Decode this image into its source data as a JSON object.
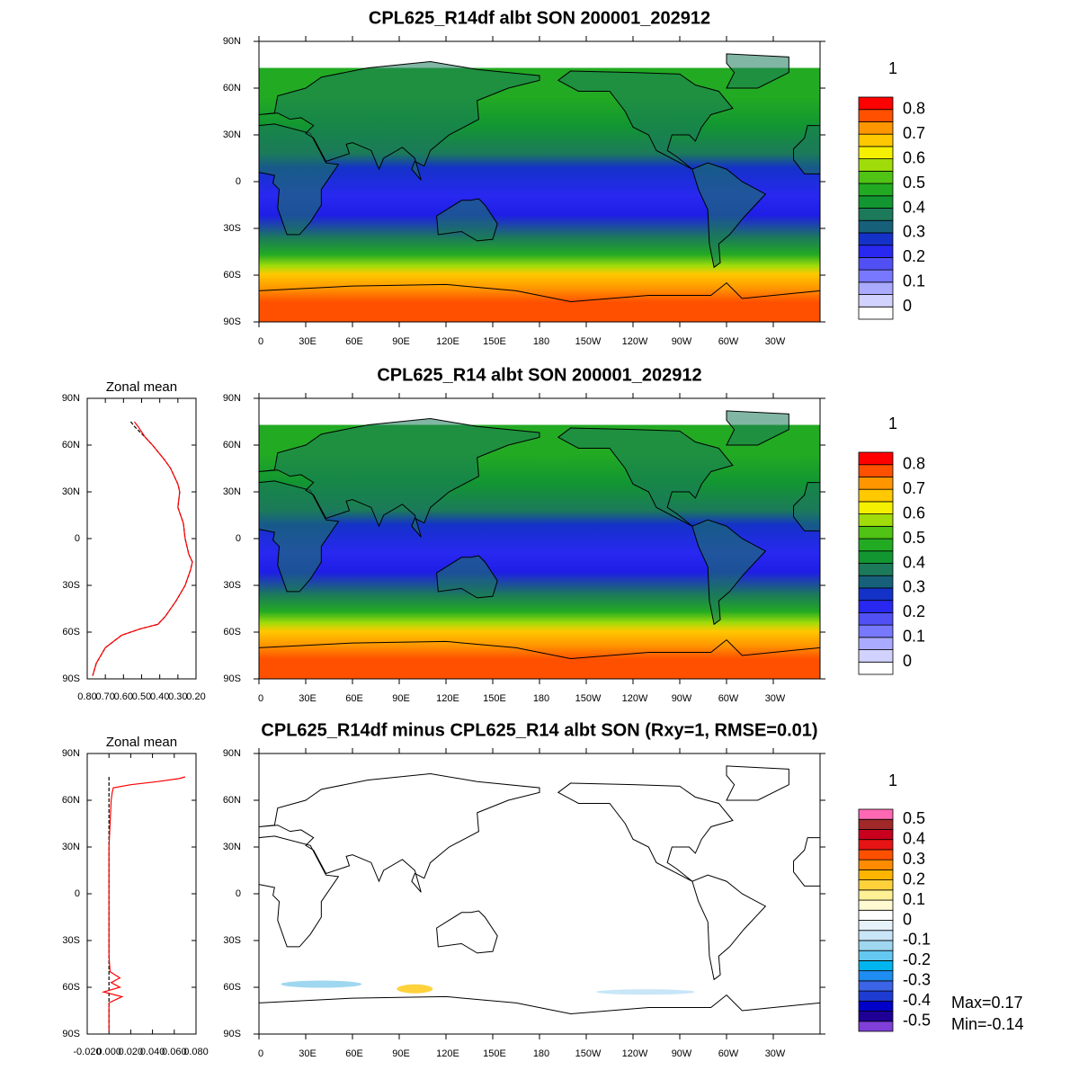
{
  "maps": [
    {
      "title": "CPL625_R14df albt SON 200001_202912",
      "lat_ticks": [
        "90N",
        "60N",
        "30N",
        "0",
        "30S",
        "60S",
        "90S"
      ],
      "lon_ticks": [
        "0",
        "30E",
        "60E",
        "90E",
        "120E",
        "150E",
        "180",
        "150W",
        "120W",
        "90W",
        "60W",
        "30W"
      ],
      "colorbar": {
        "units": "1",
        "labels": [
          0.8,
          0.7,
          0.6,
          0.5,
          0.4,
          0.3,
          0.2,
          0.1,
          0
        ],
        "colors": [
          "#ffffff",
          "#d2d2ff",
          "#aaaaff",
          "#7878ff",
          "#5050f5",
          "#2828f0",
          "#1432c8",
          "#17607a",
          "#1c7a5a",
          "#129632",
          "#23aa23",
          "#50c314",
          "#a0dc0a",
          "#f5f000",
          "#ffc800",
          "#ff9600",
          "#ff5000",
          "#ff0000"
        ]
      }
    },
    {
      "title": "CPL625_R14 albt SON 200001_202912",
      "lat_ticks": [
        "90N",
        "60N",
        "30N",
        "0",
        "30S",
        "60S",
        "90S"
      ],
      "lon_ticks": [
        "0",
        "30E",
        "60E",
        "90E",
        "120E",
        "150E",
        "180",
        "150W",
        "120W",
        "90W",
        "60W",
        "30W"
      ],
      "colorbar": {
        "units": "1",
        "labels": [
          0.8,
          0.7,
          0.6,
          0.5,
          0.4,
          0.3,
          0.2,
          0.1,
          0
        ],
        "colors": [
          "#ffffff",
          "#d2d2ff",
          "#aaaaff",
          "#7878ff",
          "#5050f5",
          "#2828f0",
          "#1432c8",
          "#17607a",
          "#1c7a5a",
          "#129632",
          "#23aa23",
          "#50c314",
          "#a0dc0a",
          "#f5f000",
          "#ffc800",
          "#ff9600",
          "#ff5000",
          "#ff0000"
        ]
      }
    },
    {
      "title": "CPL625_R14df minus CPL625_R14 albt SON (Rxy=1, RMSE=0.01)",
      "lat_ticks": [
        "90N",
        "60N",
        "30N",
        "0",
        "30S",
        "60S",
        "90S"
      ],
      "lon_ticks": [
        "0",
        "30E",
        "60E",
        "90E",
        "120E",
        "150E",
        "180",
        "150W",
        "120W",
        "90W",
        "60W",
        "30W"
      ],
      "colorbar": {
        "units": "1",
        "labels": [
          0.5,
          0.4,
          0.3,
          0.2,
          0.1,
          0,
          -0.1,
          -0.2,
          -0.3,
          -0.4,
          -0.5
        ],
        "colors": [
          "#7f3fd8",
          "#1e0096",
          "#0000c8",
          "#1e3cd2",
          "#3c64e6",
          "#1e8cf0",
          "#00b4f0",
          "#64c8f0",
          "#a0d7f0",
          "#c8e6f8",
          "#e6f2fa",
          "#ffffff",
          "#fffad2",
          "#fff096",
          "#ffd23c",
          "#ffb400",
          "#ff8c00",
          "#ff5000",
          "#e61414",
          "#c8001e",
          "#a02828",
          "#ff69b4"
        ]
      },
      "stats": [
        "Max=0.17",
        "Min=-0.14"
      ]
    }
  ],
  "chart_data": [
    {
      "type": "line",
      "title": "Zonal mean",
      "y": [
        75,
        72,
        65,
        60,
        50,
        45,
        35,
        30,
        20,
        10,
        0,
        -10,
        -15,
        -20,
        -30,
        -40,
        -50,
        -55,
        -58,
        -62,
        -70,
        -80,
        -88
      ],
      "series": [
        {
          "color": "#000000",
          "dash": true,
          "values": [
            0.56,
            0.54,
            0.48,
            0.44,
            0.37,
            0.34,
            0.3,
            0.29,
            0.3,
            0.27,
            0.26,
            0.24,
            0.22,
            0.23,
            0.26,
            0.31,
            0.37,
            0.41,
            0.51,
            0.61,
            0.7,
            0.75,
            0.77
          ]
        },
        {
          "color": "#ff0000",
          "values": [
            0.54,
            0.52,
            0.48,
            0.44,
            0.37,
            0.34,
            0.3,
            0.29,
            0.3,
            0.27,
            0.26,
            0.24,
            0.22,
            0.23,
            0.26,
            0.31,
            0.37,
            0.41,
            0.51,
            0.61,
            0.7,
            0.75,
            0.77
          ]
        }
      ],
      "xlim": [
        0.8,
        0.2
      ],
      "xticks": [
        {
          "value": 0.8,
          "label": "0.80"
        },
        {
          "value": 0.7,
          "label": "0.70"
        },
        {
          "value": 0.6,
          "label": "0.60"
        },
        {
          "value": 0.5,
          "label": "0.50"
        },
        {
          "value": 0.4,
          "label": "0.40"
        },
        {
          "value": 0.3,
          "label": "0.30"
        },
        {
          "value": 0.2,
          "label": "0.20"
        }
      ],
      "ylim": [
        -90,
        90
      ],
      "yticks": [
        {
          "value": 90,
          "label": "90N"
        },
        {
          "value": 60,
          "label": "60N"
        },
        {
          "value": 30,
          "label": "30N"
        },
        0,
        {
          "value": -30,
          "label": "30S"
        },
        {
          "value": -60,
          "label": "60S"
        },
        {
          "value": -90,
          "label": "90S"
        }
      ]
    },
    {
      "type": "line",
      "title": "Zonal mean",
      "y": [
        75,
        74,
        72,
        70,
        68,
        65,
        60,
        45,
        30,
        15,
        0,
        -15,
        -30,
        -40,
        -50,
        -54,
        -57,
        -60,
        -63,
        -66,
        -70,
        -80,
        -88
      ],
      "series": [
        {
          "color": "#000000",
          "dash": true,
          "values": [
            0,
            0,
            0,
            0,
            0,
            0,
            0,
            0,
            0,
            0,
            0,
            0,
            0,
            0,
            0,
            0,
            0,
            0,
            0,
            0,
            0,
            0,
            0
          ]
        },
        {
          "color": "#ff0000",
          "values": [
            0.07,
            0.065,
            0.045,
            0.02,
            0.004,
            0.003,
            0.002,
            0.001,
            0,
            0,
            0,
            0,
            0,
            0,
            0.001,
            0.01,
            0.002,
            0.01,
            -0.005,
            0.012,
            0,
            0,
            0
          ]
        }
      ],
      "xlim": [
        -0.02,
        0.08
      ],
      "xticks": [
        {
          "value": -0.02,
          "label": "-0.020"
        },
        {
          "value": 0,
          "label": "0.000"
        },
        {
          "value": 0.02,
          "label": "0.020"
        },
        {
          "value": 0.04,
          "label": "0.040"
        },
        {
          "value": 0.06,
          "label": "0.060"
        },
        {
          "value": 0.08,
          "label": "0.080"
        }
      ],
      "ylim": [
        -90,
        90
      ],
      "yticks": [
        {
          "value": 90,
          "label": "90N"
        },
        {
          "value": 60,
          "label": "60N"
        },
        {
          "value": 30,
          "label": "30N"
        },
        0,
        {
          "value": -30,
          "label": "30S"
        },
        {
          "value": -60,
          "label": "60S"
        },
        {
          "value": -90,
          "label": "90S"
        }
      ]
    }
  ]
}
